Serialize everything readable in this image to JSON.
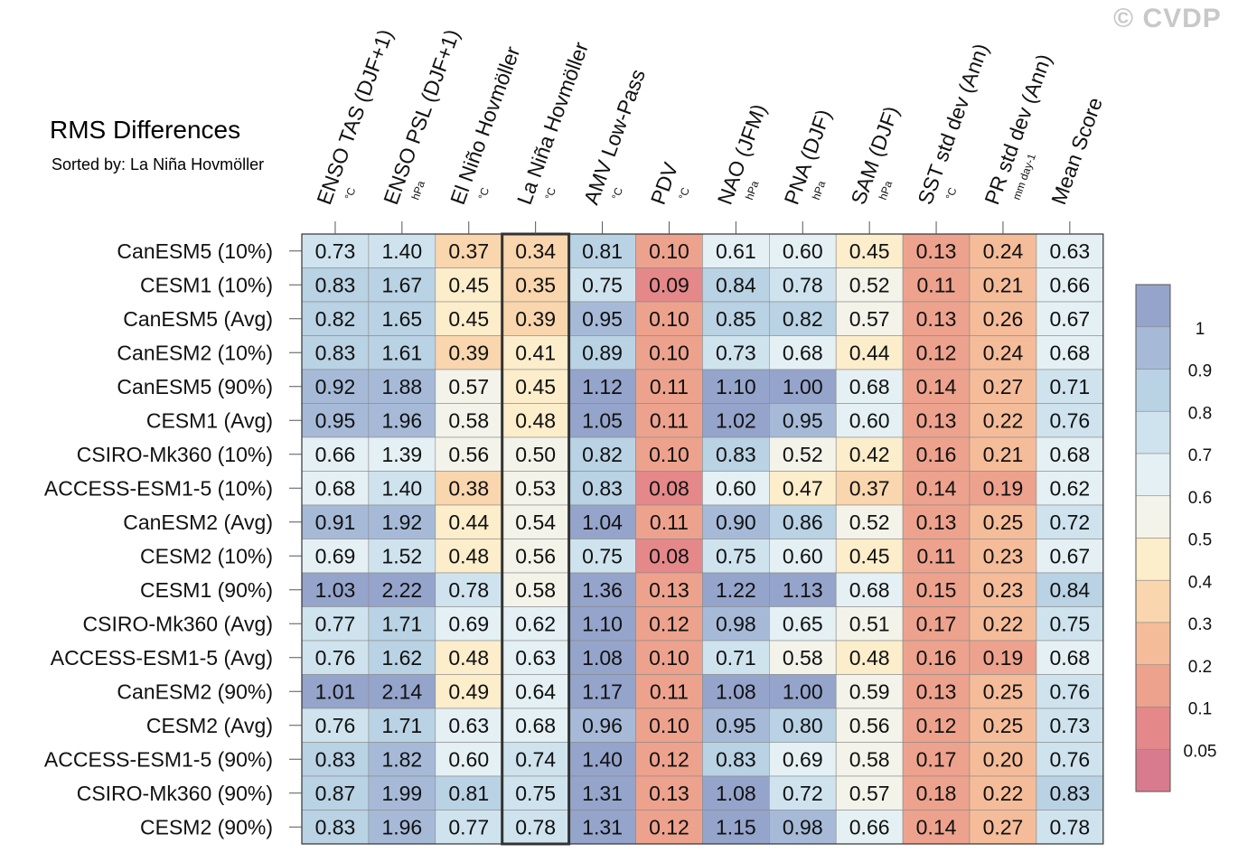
{
  "chart_data": {
    "type": "heatmap",
    "title": "RMS Differences",
    "subtitle": "Sorted by: La Niña Hovmöller",
    "watermark": "© CVDP",
    "columns": [
      {
        "name": "ENSO TAS (DJF+1)",
        "unit": "°C"
      },
      {
        "name": "ENSO PSL (DJF+1)",
        "unit": "hPa"
      },
      {
        "name": "El Niño Hovmöller",
        "unit": "°C"
      },
      {
        "name": "La Niña Hovmöller",
        "unit": "°C"
      },
      {
        "name": "AMV Low-Pass",
        "unit": "°C"
      },
      {
        "name": "PDV",
        "unit": "°C"
      },
      {
        "name": "NAO (JFM)",
        "unit": "hPa"
      },
      {
        "name": "PNA (DJF)",
        "unit": "hPa"
      },
      {
        "name": "SAM (DJF)",
        "unit": "hPa"
      },
      {
        "name": "SST std dev (Ann)",
        "unit": "°C"
      },
      {
        "name": "PR std dev (Ann)",
        "unit": "mm day-1"
      },
      {
        "name": "Mean Score",
        "unit": ""
      }
    ],
    "rows": [
      {
        "name": "CanESM5 (10%)",
        "values": [
          "0.73",
          "1.40",
          "0.37",
          "0.34",
          "0.81",
          "0.10",
          "0.61",
          "0.60",
          "0.45",
          "0.13",
          "0.24",
          "0.63"
        ]
      },
      {
        "name": "CESM1 (10%)",
        "values": [
          "0.83",
          "1.67",
          "0.45",
          "0.35",
          "0.75",
          "0.09",
          "0.84",
          "0.78",
          "0.52",
          "0.11",
          "0.21",
          "0.66"
        ]
      },
      {
        "name": "CanESM5 (Avg)",
        "values": [
          "0.82",
          "1.65",
          "0.45",
          "0.39",
          "0.95",
          "0.10",
          "0.85",
          "0.82",
          "0.57",
          "0.13",
          "0.26",
          "0.67"
        ]
      },
      {
        "name": "CanESM2 (10%)",
        "values": [
          "0.83",
          "1.61",
          "0.39",
          "0.41",
          "0.89",
          "0.10",
          "0.73",
          "0.68",
          "0.44",
          "0.12",
          "0.24",
          "0.68"
        ]
      },
      {
        "name": "CanESM5 (90%)",
        "values": [
          "0.92",
          "1.88",
          "0.57",
          "0.45",
          "1.12",
          "0.11",
          "1.10",
          "1.00",
          "0.68",
          "0.14",
          "0.27",
          "0.71"
        ]
      },
      {
        "name": "CESM1 (Avg)",
        "values": [
          "0.95",
          "1.96",
          "0.58",
          "0.48",
          "1.05",
          "0.11",
          "1.02",
          "0.95",
          "0.60",
          "0.13",
          "0.22",
          "0.76"
        ]
      },
      {
        "name": "CSIRO-Mk360 (10%)",
        "values": [
          "0.66",
          "1.39",
          "0.56",
          "0.50",
          "0.82",
          "0.10",
          "0.83",
          "0.52",
          "0.42",
          "0.16",
          "0.21",
          "0.68"
        ]
      },
      {
        "name": "ACCESS-ESM1-5 (10%)",
        "values": [
          "0.68",
          "1.40",
          "0.38",
          "0.53",
          "0.83",
          "0.08",
          "0.60",
          "0.47",
          "0.37",
          "0.14",
          "0.19",
          "0.62"
        ]
      },
      {
        "name": "CanESM2 (Avg)",
        "values": [
          "0.91",
          "1.92",
          "0.44",
          "0.54",
          "1.04",
          "0.11",
          "0.90",
          "0.86",
          "0.52",
          "0.13",
          "0.25",
          "0.72"
        ]
      },
      {
        "name": "CESM2 (10%)",
        "values": [
          "0.69",
          "1.52",
          "0.48",
          "0.56",
          "0.75",
          "0.08",
          "0.75",
          "0.60",
          "0.45",
          "0.11",
          "0.23",
          "0.67"
        ]
      },
      {
        "name": "CESM1 (90%)",
        "values": [
          "1.03",
          "2.22",
          "0.78",
          "0.58",
          "1.36",
          "0.13",
          "1.22",
          "1.13",
          "0.68",
          "0.15",
          "0.23",
          "0.84"
        ]
      },
      {
        "name": "CSIRO-Mk360 (Avg)",
        "values": [
          "0.77",
          "1.71",
          "0.69",
          "0.62",
          "1.10",
          "0.12",
          "0.98",
          "0.65",
          "0.51",
          "0.17",
          "0.22",
          "0.75"
        ]
      },
      {
        "name": "ACCESS-ESM1-5 (Avg)",
        "values": [
          "0.76",
          "1.62",
          "0.48",
          "0.63",
          "1.08",
          "0.10",
          "0.71",
          "0.58",
          "0.48",
          "0.16",
          "0.19",
          "0.68"
        ]
      },
      {
        "name": "CanESM2 (90%)",
        "values": [
          "1.01",
          "2.14",
          "0.49",
          "0.64",
          "1.17",
          "0.11",
          "1.08",
          "1.00",
          "0.59",
          "0.13",
          "0.25",
          "0.76"
        ]
      },
      {
        "name": "CESM2 (Avg)",
        "values": [
          "0.76",
          "1.71",
          "0.63",
          "0.68",
          "0.96",
          "0.10",
          "0.95",
          "0.80",
          "0.56",
          "0.12",
          "0.25",
          "0.73"
        ]
      },
      {
        "name": "ACCESS-ESM1-5 (90%)",
        "values": [
          "0.83",
          "1.82",
          "0.60",
          "0.74",
          "1.40",
          "0.12",
          "0.83",
          "0.69",
          "0.58",
          "0.17",
          "0.20",
          "0.76"
        ]
      },
      {
        "name": "CSIRO-Mk360 (90%)",
        "values": [
          "0.87",
          "1.99",
          "0.81",
          "0.75",
          "1.31",
          "0.13",
          "1.08",
          "0.72",
          "0.57",
          "0.18",
          "0.22",
          "0.83"
        ]
      },
      {
        "name": "CESM2 (90%)",
        "values": [
          "0.83",
          "1.96",
          "0.77",
          "0.78",
          "1.31",
          "0.12",
          "1.15",
          "0.98",
          "0.66",
          "0.14",
          "0.27",
          "0.78"
        ]
      }
    ],
    "highlighted_column": "La Niña Hovmöller",
    "colorbar": {
      "tick_labels": [
        "1",
        "0.9",
        "0.8",
        "0.7",
        "0.6",
        "0.5",
        "0.4",
        "0.3",
        "0.2",
        "0.1",
        "0.05"
      ],
      "colors": [
        "#95a4cb",
        "#a6bad8",
        "#b9d2e4",
        "#cfe3ee",
        "#e4f0f4",
        "#f3f3ea",
        "#fcedcb",
        "#f9d6ad",
        "#f5bc9a",
        "#eda28d",
        "#e4888a",
        "#d97b8e"
      ]
    }
  }
}
